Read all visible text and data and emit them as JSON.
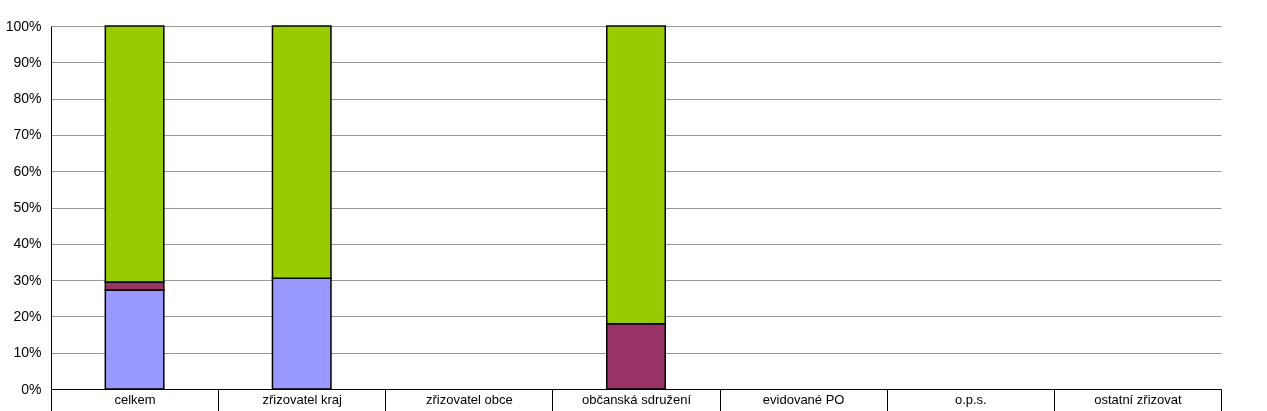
{
  "chart_data": {
    "type": "bar",
    "stacked": true,
    "categories": [
      "celkem",
      "zřizovatel kraj",
      "zřizovatel obce",
      "občanská sdružení",
      "evidované PO",
      "o.p.s.",
      "ostatní zřizovat"
    ],
    "series": [
      {
        "color": "#9999ff",
        "values": [
          27.3,
          30.5,
          null,
          null,
          null,
          null,
          null
        ]
      },
      {
        "color": "#993366",
        "values": [
          2.2,
          null,
          null,
          18,
          null,
          null,
          null
        ]
      },
      {
        "color": "#99cc00",
        "values": [
          70.5,
          69.5,
          null,
          82,
          null,
          null,
          null
        ]
      }
    ],
    "ylim": [
      0,
      100
    ],
    "yticks": [
      {
        "value": 0,
        "label": "0%"
      },
      {
        "value": 10,
        "label": "10%"
      },
      {
        "value": 20,
        "label": "20%"
      },
      {
        "value": 30,
        "label": "30%"
      },
      {
        "value": 40,
        "label": "40%"
      },
      {
        "value": 50,
        "label": "50%"
      },
      {
        "value": 60,
        "label": "60%"
      },
      {
        "value": 70,
        "label": "70%"
      },
      {
        "value": 80,
        "label": "80%"
      },
      {
        "value": 90,
        "label": "90%"
      },
      {
        "value": 100,
        "label": "100%"
      }
    ],
    "grid": "y",
    "legend": false
  }
}
